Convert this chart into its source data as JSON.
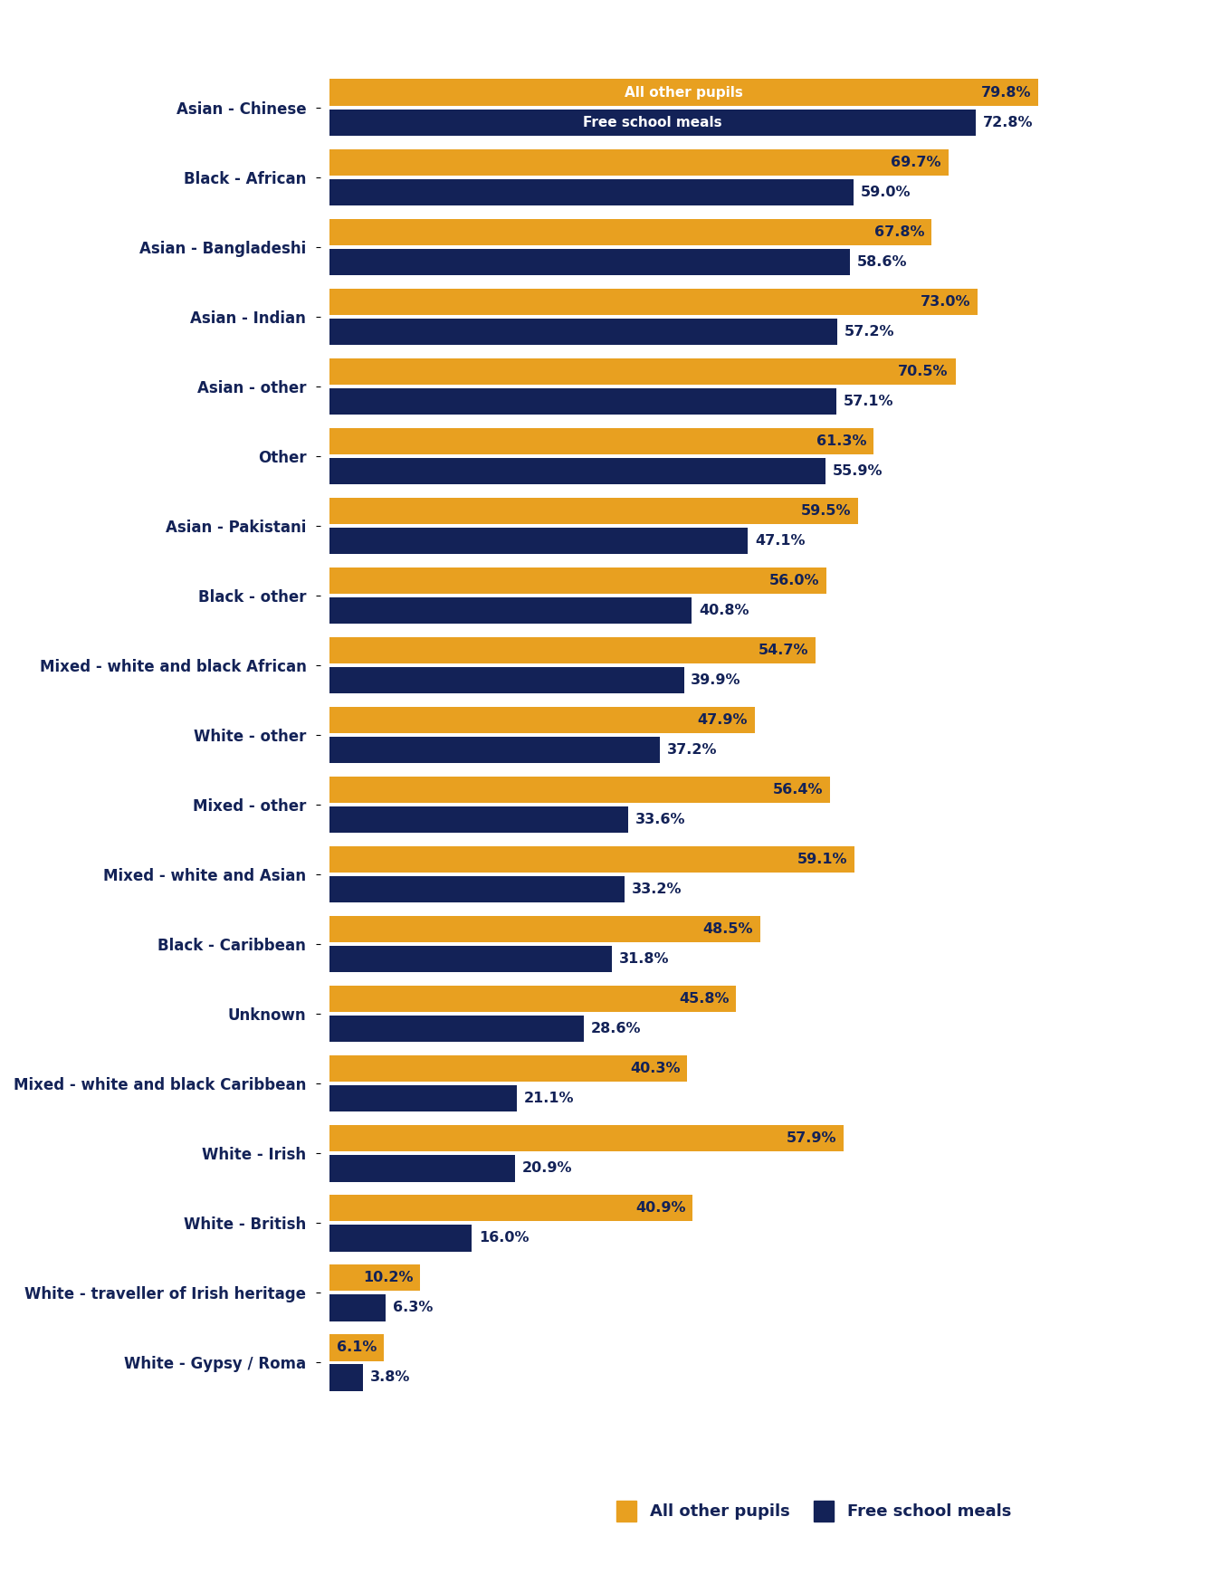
{
  "categories": [
    "Asian - Chinese",
    "Black - African",
    "Asian - Bangladeshi",
    "Asian - Indian",
    "Asian - other",
    "Other",
    "Asian - Pakistani",
    "Black - other",
    "Mixed - white and black African",
    "White - other",
    "Mixed - other",
    "Mixed - white and Asian",
    "Black - Caribbean",
    "Unknown",
    "Mixed - white and black Caribbean",
    "White - Irish",
    "White - British",
    "White - traveller of Irish heritage",
    "White - Gypsy / Roma"
  ],
  "all_other_pupils": [
    79.8,
    69.7,
    67.8,
    73.0,
    70.5,
    61.3,
    59.5,
    56.0,
    54.7,
    47.9,
    56.4,
    59.1,
    48.5,
    45.8,
    40.3,
    57.9,
    40.9,
    10.2,
    6.1
  ],
  "free_school_meals": [
    72.8,
    59.0,
    58.6,
    57.2,
    57.1,
    55.9,
    47.1,
    40.8,
    39.9,
    37.2,
    33.6,
    33.2,
    31.8,
    28.6,
    21.1,
    20.9,
    16.0,
    6.3,
    3.8
  ],
  "color_all_other": "#E8A020",
  "color_fsm": "#132257",
  "text_color": "#132257",
  "background_color": "#FFFFFF",
  "bar_height": 0.38,
  "label_legend_all": "All other pupils",
  "label_legend_fsm": "Free school meals",
  "header_label_all": "All other pupils",
  "header_label_fsm": "Free school meals"
}
